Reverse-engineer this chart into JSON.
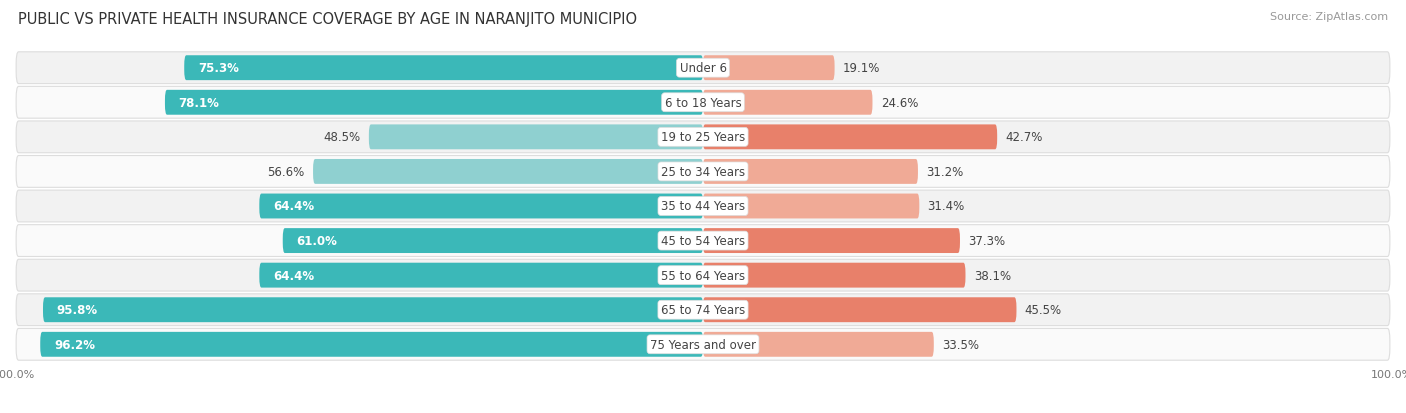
{
  "title": "PUBLIC VS PRIVATE HEALTH INSURANCE COVERAGE BY AGE IN NARANJITO MUNICIPIO",
  "source": "Source: ZipAtlas.com",
  "categories": [
    "Under 6",
    "6 to 18 Years",
    "19 to 25 Years",
    "25 to 34 Years",
    "35 to 44 Years",
    "45 to 54 Years",
    "55 to 64 Years",
    "65 to 74 Years",
    "75 Years and over"
  ],
  "public_values": [
    75.3,
    78.1,
    48.5,
    56.6,
    64.4,
    61.0,
    64.4,
    95.8,
    96.2
  ],
  "private_values": [
    19.1,
    24.6,
    42.7,
    31.2,
    31.4,
    37.3,
    38.1,
    45.5,
    33.5
  ],
  "public_color_dark": "#3BB8B8",
  "public_color_light": "#8FD0D0",
  "private_color_dark": "#E8806A",
  "private_color_light": "#F0AA96",
  "row_colors": [
    "#F2F2F2",
    "#FAFAFA",
    "#F2F2F2",
    "#FAFAFA",
    "#F2F2F2",
    "#FAFAFA",
    "#F2F2F2",
    "#F2F2F2",
    "#FAFAFA"
  ],
  "label_color_dark": "#444444",
  "label_color_white": "#FFFFFF",
  "title_color": "#333333",
  "source_color": "#999999",
  "max_value": 100.0,
  "title_fontsize": 10.5,
  "label_fontsize": 8.5,
  "cat_fontsize": 8.5,
  "tick_fontsize": 8,
  "source_fontsize": 8,
  "pub_dark_threshold": 60,
  "priv_dark_threshold": 35
}
